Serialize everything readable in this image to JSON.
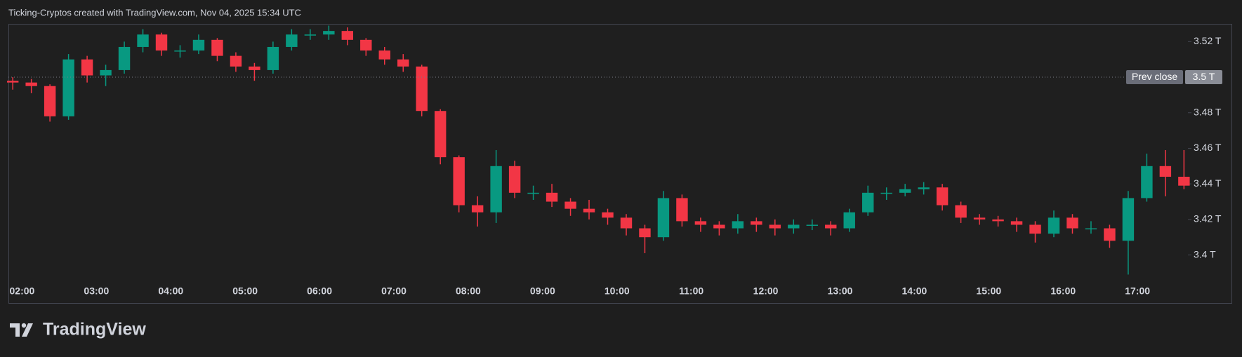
{
  "chart_data": {
    "type": "candlestick",
    "title": "Ticking-Cryptos created with TradingView.com, Nov 04, 2025 15:34 UTC",
    "watermark": "TradingView",
    "up_color": "#089981",
    "down_color": "#f23645",
    "grid": false,
    "x": [
      "01:45",
      "02:00",
      "02:15",
      "02:30",
      "02:45",
      "03:00",
      "03:15",
      "03:30",
      "03:45",
      "04:00",
      "04:15",
      "04:30",
      "04:45",
      "05:00",
      "05:15",
      "05:30",
      "05:45",
      "06:00",
      "06:15",
      "06:30",
      "06:45",
      "07:00",
      "07:15",
      "07:30",
      "07:45",
      "08:00",
      "08:15",
      "08:30",
      "08:45",
      "09:00",
      "09:15",
      "09:30",
      "09:45",
      "10:00",
      "10:15",
      "10:30",
      "10:45",
      "11:00",
      "11:15",
      "11:30",
      "11:45",
      "12:00",
      "12:15",
      "12:30",
      "12:45",
      "13:00",
      "13:15",
      "13:30",
      "13:45",
      "14:00",
      "14:15",
      "14:30",
      "14:45",
      "15:00",
      "15:15",
      "15:30",
      "15:45",
      "16:00",
      "16:15",
      "16:30",
      "16:45",
      "17:00",
      "17:15",
      "17:30"
    ],
    "open": [
      3.498,
      3.497,
      3.495,
      3.478,
      3.51,
      3.501,
      3.504,
      3.517,
      3.524,
      3.515,
      3.515,
      3.521,
      3.512,
      3.506,
      3.504,
      3.517,
      3.524,
      3.524,
      3.526,
      3.521,
      3.515,
      3.51,
      3.506,
      3.481,
      3.455,
      3.428,
      3.424,
      3.45,
      3.435,
      3.435,
      3.43,
      3.426,
      3.424,
      3.421,
      3.415,
      3.41,
      3.432,
      3.419,
      3.417,
      3.415,
      3.419,
      3.417,
      3.415,
      3.417,
      3.417,
      3.415,
      3.424,
      3.435,
      3.435,
      3.437,
      3.438,
      3.428,
      3.421,
      3.42,
      3.419,
      3.417,
      3.412,
      3.421,
      3.415,
      3.415,
      3.408,
      3.432,
      3.45,
      3.444
    ],
    "high": [
      3.5,
      3.499,
      3.496,
      3.513,
      3.512,
      3.507,
      3.52,
      3.527,
      3.525,
      3.518,
      3.524,
      3.522,
      3.514,
      3.508,
      3.52,
      3.527,
      3.527,
      3.529,
      3.528,
      3.522,
      3.517,
      3.513,
      3.507,
      3.482,
      3.456,
      3.433,
      3.459,
      3.453,
      3.439,
      3.44,
      3.432,
      3.431,
      3.426,
      3.423,
      3.417,
      3.436,
      3.434,
      3.421,
      3.419,
      3.423,
      3.421,
      3.42,
      3.42,
      3.42,
      3.419,
      3.426,
      3.439,
      3.438,
      3.44,
      3.441,
      3.44,
      3.43,
      3.423,
      3.422,
      3.421,
      3.419,
      3.425,
      3.423,
      3.419,
      3.417,
      3.436,
      3.457,
      3.459,
      3.459
    ],
    "low": [
      3.493,
      3.491,
      3.475,
      3.476,
      3.497,
      3.495,
      3.502,
      3.514,
      3.512,
      3.511,
      3.513,
      3.509,
      3.503,
      3.498,
      3.502,
      3.515,
      3.521,
      3.521,
      3.518,
      3.512,
      3.507,
      3.503,
      3.478,
      3.451,
      3.424,
      3.416,
      3.418,
      3.432,
      3.431,
      3.427,
      3.422,
      3.42,
      3.417,
      3.411,
      3.401,
      3.408,
      3.416,
      3.413,
      3.411,
      3.412,
      3.413,
      3.411,
      3.412,
      3.414,
      3.411,
      3.413,
      3.422,
      3.431,
      3.433,
      3.434,
      3.425,
      3.418,
      3.417,
      3.416,
      3.413,
      3.407,
      3.41,
      3.412,
      3.412,
      3.404,
      3.389,
      3.43,
      3.433,
      3.437
    ],
    "close": [
      3.497,
      3.495,
      3.478,
      3.51,
      3.501,
      3.504,
      3.517,
      3.524,
      3.515,
      3.515,
      3.521,
      3.512,
      3.506,
      3.504,
      3.517,
      3.524,
      3.524,
      3.526,
      3.521,
      3.515,
      3.51,
      3.506,
      3.481,
      3.455,
      3.428,
      3.424,
      3.45,
      3.435,
      3.435,
      3.43,
      3.426,
      3.424,
      3.421,
      3.415,
      3.41,
      3.432,
      3.419,
      3.417,
      3.415,
      3.419,
      3.417,
      3.415,
      3.417,
      3.417,
      3.415,
      3.424,
      3.435,
      3.435,
      3.437,
      3.438,
      3.428,
      3.421,
      3.42,
      3.419,
      3.417,
      3.412,
      3.421,
      3.415,
      3.415,
      3.408,
      3.432,
      3.45,
      3.444,
      3.439
    ],
    "xlim": [
      "01:49",
      "17:39"
    ],
    "xticks": [
      "02:00",
      "03:00",
      "04:00",
      "05:00",
      "06:00",
      "07:00",
      "08:00",
      "09:00",
      "10:00",
      "11:00",
      "12:00",
      "13:00",
      "14:00",
      "15:00",
      "16:00",
      "17:00"
    ],
    "ylim": [
      3.373,
      3.53
    ],
    "yticks": [
      {
        "value": 3.4,
        "label": "3.4 T"
      },
      {
        "value": 3.42,
        "label": "3.42 T"
      },
      {
        "value": 3.44,
        "label": "3.44 T"
      },
      {
        "value": 3.46,
        "label": "3.46 T"
      },
      {
        "value": 3.48,
        "label": "3.48 T"
      },
      {
        "value": 3.52,
        "label": "3.52 T"
      }
    ],
    "prev_close": {
      "name": "Prev close",
      "value": 3.5,
      "label": "3.5 T"
    }
  }
}
